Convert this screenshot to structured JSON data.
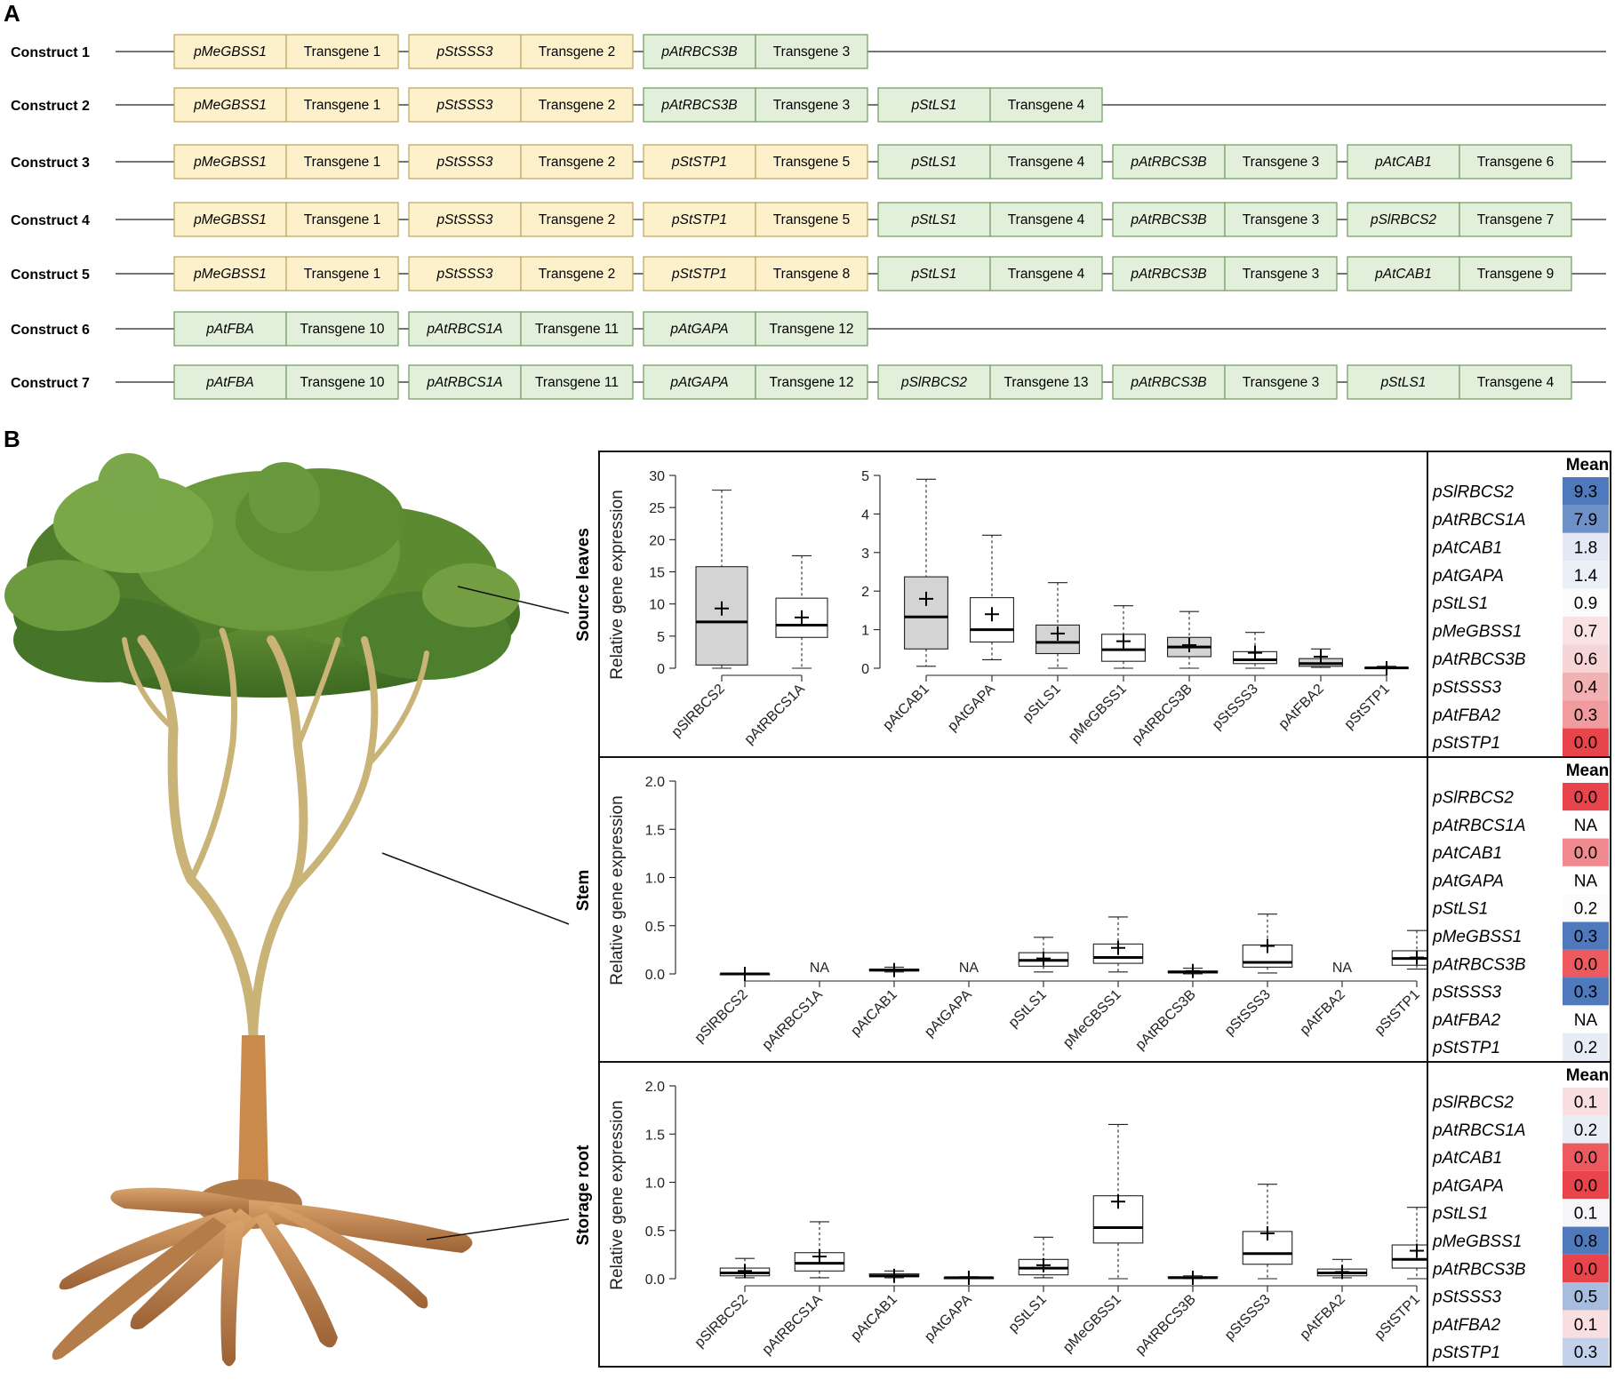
{
  "panels": {
    "a": "A",
    "b": "B"
  },
  "constructs": [
    {
      "label": "Construct 1",
      "cassettes": [
        {
          "promoter": "pMeGBSS1",
          "transgene": "Transgene 1",
          "color": "yellow"
        },
        {
          "promoter": "pStSSS3",
          "transgene": "Transgene 2",
          "color": "yellow"
        },
        {
          "promoter": "pAtRBCS3B",
          "transgene": "Transgene 3",
          "color": "green"
        }
      ]
    },
    {
      "label": "Construct 2",
      "cassettes": [
        {
          "promoter": "pMeGBSS1",
          "transgene": "Transgene 1",
          "color": "yellow"
        },
        {
          "promoter": "pStSSS3",
          "transgene": "Transgene 2",
          "color": "yellow"
        },
        {
          "promoter": "pAtRBCS3B",
          "transgene": "Transgene 3",
          "color": "green"
        },
        {
          "promoter": "pStLS1",
          "transgene": "Transgene 4",
          "color": "green"
        }
      ]
    },
    {
      "label": "Construct 3",
      "cassettes": [
        {
          "promoter": "pMeGBSS1",
          "transgene": "Transgene 1",
          "color": "yellow"
        },
        {
          "promoter": "pStSSS3",
          "transgene": "Transgene 2",
          "color": "yellow"
        },
        {
          "promoter": "pStSTP1",
          "transgene": "Transgene 5",
          "color": "yellow"
        },
        {
          "promoter": "pStLS1",
          "transgene": "Transgene 4",
          "color": "green"
        },
        {
          "promoter": "pAtRBCS3B",
          "transgene": "Transgene 3",
          "color": "green"
        },
        {
          "promoter": "pAtCAB1",
          "transgene": "Transgene 6",
          "color": "green"
        }
      ]
    },
    {
      "label": "Construct 4",
      "cassettes": [
        {
          "promoter": "pMeGBSS1",
          "transgene": "Transgene 1",
          "color": "yellow"
        },
        {
          "promoter": "pStSSS3",
          "transgene": "Transgene 2",
          "color": "yellow"
        },
        {
          "promoter": "pStSTP1",
          "transgene": "Transgene 5",
          "color": "yellow"
        },
        {
          "promoter": "pStLS1",
          "transgene": "Transgene 4",
          "color": "green"
        },
        {
          "promoter": "pAtRBCS3B",
          "transgene": "Transgene 3",
          "color": "green"
        },
        {
          "promoter": "pSlRBCS2",
          "transgene": "Transgene 7",
          "color": "green"
        }
      ]
    },
    {
      "label": "Construct 5",
      "cassettes": [
        {
          "promoter": "pMeGBSS1",
          "transgene": "Transgene 1",
          "color": "yellow"
        },
        {
          "promoter": "pStSSS3",
          "transgene": "Transgene 2",
          "color": "yellow"
        },
        {
          "promoter": "pStSTP1",
          "transgene": "Transgene 8",
          "color": "yellow"
        },
        {
          "promoter": "pStLS1",
          "transgene": "Transgene 4",
          "color": "green"
        },
        {
          "promoter": "pAtRBCS3B",
          "transgene": "Transgene 3",
          "color": "green"
        },
        {
          "promoter": "pAtCAB1",
          "transgene": "Transgene 9",
          "color": "green"
        }
      ]
    },
    {
      "label": "Construct 6",
      "cassettes": [
        {
          "promoter": "pAtFBA",
          "transgene": "Transgene 10",
          "color": "green"
        },
        {
          "promoter": "pAtRBCS1A",
          "transgene": "Transgene 11",
          "color": "green"
        },
        {
          "promoter": "pAtGAPA",
          "transgene": "Transgene 12",
          "color": "green"
        }
      ]
    },
    {
      "label": "Construct 7",
      "cassettes": [
        {
          "promoter": "pAtFBA",
          "transgene": "Transgene 10",
          "color": "green"
        },
        {
          "promoter": "pAtRBCS1A",
          "transgene": "Transgene 11",
          "color": "green"
        },
        {
          "promoter": "pAtGAPA",
          "transgene": "Transgene 12",
          "color": "green"
        },
        {
          "promoter": "pSlRBCS2",
          "transgene": "Transgene 13",
          "color": "green"
        },
        {
          "promoter": "pAtRBCS3B",
          "transgene": "Transgene 3",
          "color": "green"
        },
        {
          "promoter": "pStLS1",
          "transgene": "Transgene 4",
          "color": "green"
        }
      ]
    }
  ],
  "colors": {
    "yellow_fill": "#fdf1cc",
    "yellow_stroke": "#b9a45c",
    "green_fill": "#e2f0db",
    "green_stroke": "#6f9a5e",
    "grey_box": "#d4d4d4"
  },
  "chart_data": [
    {
      "type": "box",
      "tissue": "Source leaves",
      "ylabel": "Relative gene expression",
      "subplots": [
        {
          "ylim": [
            0,
            30
          ],
          "yticks": [
            0,
            5,
            10,
            15,
            20,
            25,
            30
          ],
          "boxes": [
            {
              "name": "pSlRBCS2",
              "min": 0,
              "q1": 0.5,
              "median": 7.2,
              "q3": 15.8,
              "max": 27.7,
              "mean": 9.3,
              "shaded": true
            },
            {
              "name": "pAtRBCS1A",
              "min": 0,
              "q1": 4.8,
              "median": 6.7,
              "q3": 10.9,
              "max": 17.5,
              "mean": 7.9,
              "shaded": false
            }
          ]
        },
        {
          "ylim": [
            0,
            5
          ],
          "yticks": [
            0,
            1,
            2,
            3,
            4,
            5
          ],
          "boxes": [
            {
              "name": "pAtCAB1",
              "min": 0.05,
              "q1": 0.5,
              "median": 1.33,
              "q3": 2.37,
              "max": 4.9,
              "mean": 1.8,
              "shaded": true
            },
            {
              "name": "pAtGAPA",
              "min": 0.22,
              "q1": 0.68,
              "median": 1.0,
              "q3": 1.83,
              "max": 3.45,
              "mean": 1.4,
              "shaded": false
            },
            {
              "name": "pStLS1",
              "min": 0,
              "q1": 0.38,
              "median": 0.67,
              "q3": 1.12,
              "max": 2.22,
              "mean": 0.9,
              "shaded": true
            },
            {
              "name": "pMeGBSS1",
              "min": 0,
              "q1": 0.18,
              "median": 0.48,
              "q3": 0.88,
              "max": 1.62,
              "mean": 0.7,
              "shaded": false
            },
            {
              "name": "pAtRBCS3B",
              "min": 0,
              "q1": 0.3,
              "median": 0.55,
              "q3": 0.8,
              "max": 1.47,
              "mean": 0.6,
              "shaded": true
            },
            {
              "name": "pStSSS3",
              "min": 0,
              "q1": 0.12,
              "median": 0.22,
              "q3": 0.43,
              "max": 0.93,
              "mean": 0.4,
              "shaded": false
            },
            {
              "name": "pAtFBA2",
              "min": 0.02,
              "q1": 0.05,
              "median": 0.12,
              "q3": 0.25,
              "max": 0.5,
              "mean": 0.3,
              "shaded": true
            },
            {
              "name": "pStSTP1",
              "min": 0,
              "q1": 0,
              "median": 0.01,
              "q3": 0.02,
              "max": 0.05,
              "mean": 0.0,
              "shaded": false
            }
          ]
        }
      ],
      "table": {
        "header": "Mean",
        "rows": [
          {
            "name": "pSlRBCS2",
            "value": "9.3",
            "color": "#4e79bd"
          },
          {
            "name": "pAtRBCS1A",
            "value": "7.9",
            "color": "#6d91c8"
          },
          {
            "name": "pAtCAB1",
            "value": "1.8",
            "color": "#e2e9f5"
          },
          {
            "name": "pAtGAPA",
            "value": "1.4",
            "color": "#ebeff7"
          },
          {
            "name": "pStLS1",
            "value": "0.9",
            "color": "#fbfbfc"
          },
          {
            "name": "pMeGBSS1",
            "value": "0.7",
            "color": "#f9e2e3"
          },
          {
            "name": "pAtRBCS3B",
            "value": "0.6",
            "color": "#f7d4d6"
          },
          {
            "name": "pStSSS3",
            "value": "0.4",
            "color": "#f3b1b4"
          },
          {
            "name": "pAtFBA2",
            "value": "0.3",
            "color": "#f19b9f"
          },
          {
            "name": "pStSTP1",
            "value": "0.0",
            "color": "#e8444b"
          }
        ]
      }
    },
    {
      "type": "box",
      "tissue": "Stem",
      "ylabel": "Relative gene expression",
      "ylim": [
        0,
        2.0
      ],
      "yticks": [
        "0.0",
        "0.5",
        "1.0",
        "1.5",
        "2.0"
      ],
      "na_label": "NA",
      "boxes": [
        {
          "name": "pSlRBCS2",
          "min": 0,
          "q1": 0,
          "median": 0,
          "q3": 0,
          "max": 0,
          "mean": 0.0
        },
        {
          "name": "pAtRBCS1A",
          "na": true
        },
        {
          "name": "pAtCAB1",
          "min": 0.02,
          "q1": 0.03,
          "median": 0.04,
          "q3": 0.05,
          "max": 0.07,
          "mean": 0.04
        },
        {
          "name": "pAtGAPA",
          "na": true
        },
        {
          "name": "pStLS1",
          "min": 0.02,
          "q1": 0.08,
          "median": 0.14,
          "q3": 0.22,
          "max": 0.38,
          "mean": 0.16
        },
        {
          "name": "pMeGBSS1",
          "min": 0.02,
          "q1": 0.11,
          "median": 0.17,
          "q3": 0.31,
          "max": 0.59,
          "mean": 0.27
        },
        {
          "name": "pAtRBCS3B",
          "min": 0,
          "q1": 0.01,
          "median": 0.02,
          "q3": 0.03,
          "max": 0.06,
          "mean": 0.03
        },
        {
          "name": "pStSSS3",
          "min": 0.01,
          "q1": 0.07,
          "median": 0.12,
          "q3": 0.3,
          "max": 0.62,
          "mean": 0.29
        },
        {
          "name": "pAtFBA2",
          "na": true
        },
        {
          "name": "pStSTP1",
          "min": 0.05,
          "q1": 0.09,
          "median": 0.16,
          "q3": 0.24,
          "max": 0.45,
          "mean": 0.17
        }
      ],
      "table": {
        "header": "Mean",
        "rows": [
          {
            "name": "pSlRBCS2",
            "value": "0.0",
            "color": "#e8444b"
          },
          {
            "name": "pAtRBCS1A",
            "value": "NA",
            "color": "#ffffff"
          },
          {
            "name": "pAtCAB1",
            "value": "0.0",
            "color": "#f08a8e"
          },
          {
            "name": "pAtGAPA",
            "value": "NA",
            "color": "#ffffff"
          },
          {
            "name": "pStLS1",
            "value": "0.2",
            "color": "#fcfcfd"
          },
          {
            "name": "pMeGBSS1",
            "value": "0.3",
            "color": "#4e79bd"
          },
          {
            "name": "pAtRBCS3B",
            "value": "0.0",
            "color": "#ec5a60"
          },
          {
            "name": "pStSSS3",
            "value": "0.3",
            "color": "#4e79bd"
          },
          {
            "name": "pAtFBA2",
            "value": "NA",
            "color": "#ffffff"
          },
          {
            "name": "pStSTP1",
            "value": "0.2",
            "color": "#e7ecf6"
          }
        ]
      }
    },
    {
      "type": "box",
      "tissue": "Storage root",
      "ylabel": "Relative gene expression",
      "ylim": [
        0,
        2.0
      ],
      "yticks": [
        "0.0",
        "0.5",
        "1.0",
        "1.5",
        "2.0"
      ],
      "boxes": [
        {
          "name": "pSlRBCS2",
          "min": 0.01,
          "q1": 0.03,
          "median": 0.06,
          "q3": 0.11,
          "max": 0.21,
          "mean": 0.08
        },
        {
          "name": "pAtRBCS1A",
          "min": 0.01,
          "q1": 0.08,
          "median": 0.16,
          "q3": 0.27,
          "max": 0.59,
          "mean": 0.23
        },
        {
          "name": "pAtCAB1",
          "min": 0.01,
          "q1": 0.02,
          "median": 0.03,
          "q3": 0.05,
          "max": 0.08,
          "mean": 0.03
        },
        {
          "name": "pAtGAPA",
          "min": 0,
          "q1": 0,
          "median": 0.01,
          "q3": 0.01,
          "max": 0.02,
          "mean": 0.01
        },
        {
          "name": "pStLS1",
          "min": 0.01,
          "q1": 0.04,
          "median": 0.11,
          "q3": 0.2,
          "max": 0.43,
          "mean": 0.14
        },
        {
          "name": "pMeGBSS1",
          "min": 0,
          "q1": 0.37,
          "median": 0.53,
          "q3": 0.86,
          "max": 1.6,
          "mean": 0.8
        },
        {
          "name": "pAtRBCS3B",
          "min": 0,
          "q1": 0.01,
          "median": 0.01,
          "q3": 0.02,
          "max": 0.03,
          "mean": 0.01
        },
        {
          "name": "pStSSS3",
          "min": 0,
          "q1": 0.15,
          "median": 0.26,
          "q3": 0.49,
          "max": 0.98,
          "mean": 0.47
        },
        {
          "name": "pAtFBA2",
          "min": 0.01,
          "q1": 0.03,
          "median": 0.06,
          "q3": 0.1,
          "max": 0.2,
          "mean": 0.07
        },
        {
          "name": "pStSTP1",
          "min": 0,
          "q1": 0.11,
          "median": 0.2,
          "q3": 0.35,
          "max": 0.74,
          "mean": 0.29
        }
      ],
      "table": {
        "header": "Mean",
        "rows": [
          {
            "name": "pSlRBCS2",
            "value": "0.1",
            "color": "#f9dfe0"
          },
          {
            "name": "pAtRBCS1A",
            "value": "0.2",
            "color": "#e8edf6"
          },
          {
            "name": "pAtCAB1",
            "value": "0.0",
            "color": "#ec5a60"
          },
          {
            "name": "pAtGAPA",
            "value": "0.0",
            "color": "#e8444b"
          },
          {
            "name": "pStLS1",
            "value": "0.1",
            "color": "#f6f6f9"
          },
          {
            "name": "pMeGBSS1",
            "value": "0.8",
            "color": "#4e79bd"
          },
          {
            "name": "pAtRBCS3B",
            "value": "0.0",
            "color": "#e8444b"
          },
          {
            "name": "pStSSS3",
            "value": "0.5",
            "color": "#a7bddf"
          },
          {
            "name": "pAtFBA2",
            "value": "0.1",
            "color": "#f9dfe0"
          },
          {
            "name": "pStSTP1",
            "value": "0.3",
            "color": "#c3d2ea"
          }
        ]
      }
    }
  ]
}
